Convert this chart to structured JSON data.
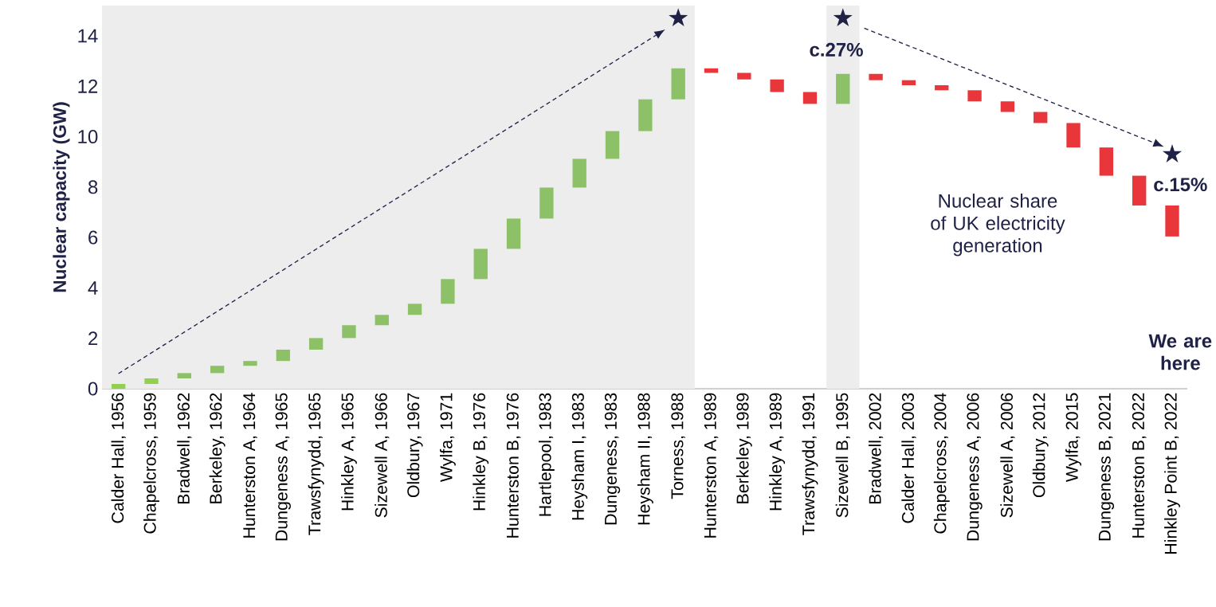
{
  "chart_data": {
    "type": "bar",
    "ylabel": "Nuclear capacity (GW)",
    "categories": [
      "Calder Hall, 1956",
      "Chapelcross, 1959",
      "Bradwell, 1962",
      "Berkeley, 1962",
      "Hunterston A, 1964",
      "Dungeness A, 1965",
      "Trawsfynydd, 1965",
      "Hinkley A, 1965",
      "Sizewell A, 1966",
      "Oldbury, 1967",
      "Wylfa, 1971",
      "Hinkley B, 1976",
      "Hunterston B, 1976",
      "Hartlepool, 1983",
      "Heysham I, 1983",
      "Dungeness, 1983",
      "Heysham II, 1988",
      "Torness, 1988",
      "Hunterston A, 1989",
      "Berkeley, 1989",
      "Hinkley A, 1989",
      "Trawsfynydd, 1991",
      "Sizewell B, 1995",
      "Bradwell, 2002",
      "Calder Hall, 2003",
      "Chapelcross, 2004",
      "Dungeness A, 2006",
      "Sizewell A, 2006",
      "Oldbury, 2012",
      "Wylfa, 2015",
      "Dungeness B, 2021",
      "Hunterston B, 2022",
      "Hinkley Point B, 2022"
    ],
    "base": [
      0,
      0.19,
      0.41,
      0.62,
      0.91,
      1.1,
      1.55,
      2.01,
      2.52,
      2.93,
      3.37,
      4.35,
      5.55,
      6.75,
      7.98,
      9.12,
      10.22,
      11.48,
      12.71,
      12.53,
      12.27,
      11.77,
      11.3,
      12.49,
      12.24,
      12.04,
      11.84,
      11.4,
      10.98,
      10.54,
      9.57,
      8.45,
      7.27
    ],
    "values": [
      0.19,
      0.22,
      0.21,
      0.29,
      0.19,
      0.45,
      0.46,
      0.51,
      0.41,
      0.44,
      0.98,
      1.2,
      1.2,
      1.23,
      1.14,
      1.1,
      1.26,
      1.23,
      -0.18,
      -0.26,
      -0.5,
      -0.47,
      1.19,
      -0.25,
      -0.2,
      -0.2,
      -0.44,
      -0.42,
      -0.44,
      -0.97,
      -1.12,
      -1.18,
      -1.23
    ],
    "colors": [
      "#92d050",
      "#92d050",
      "#8cc167",
      "#8cc167",
      "#8cc167",
      "#8cc167",
      "#8cc167",
      "#8cc167",
      "#8cc167",
      "#8cc167",
      "#8cc167",
      "#8cc167",
      "#8cc167",
      "#8cc167",
      "#8cc167",
      "#8cc167",
      "#8cc167",
      "#8cc167",
      "#e8363a",
      "#e8363a",
      "#e8363a",
      "#e8363a",
      "#8cc167",
      "#e8363a",
      "#e8363a",
      "#e8363a",
      "#e8363a",
      "#e8363a",
      "#e8363a",
      "#e8363a",
      "#e8363a",
      "#e8363a",
      "#e8363a"
    ],
    "ylim": [
      0,
      15.2
    ],
    "yticks": [
      0,
      2,
      4,
      6,
      8,
      10,
      12,
      14
    ],
    "bands": [
      {
        "axis": "x",
        "from": "Calder Hall, 1956",
        "to": "Torness, 1988",
        "color": "#ededed"
      },
      {
        "axis": "x",
        "from": "Sizewell B, 1995",
        "to": "Sizewell B, 1995",
        "color": "#ededed"
      }
    ],
    "annotations": [
      "c.27%",
      "Nuclear share of UK electricity generation",
      "c.15%",
      "We are here"
    ],
    "grid": false
  }
}
